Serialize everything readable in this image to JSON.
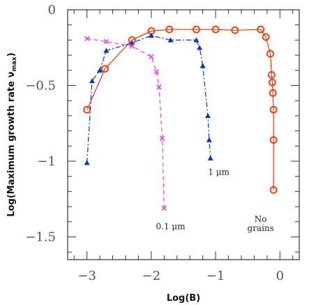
{
  "chart_data": {
    "type": "line",
    "xlabel": "Log(B)",
    "ylabel": "Log(Maximum growth rate ν",
    "ylabel_sub": "max",
    "ylabel_close": ")",
    "xlim": [
      -3.3,
      0.3
    ],
    "ylim": [
      -1.65,
      0
    ],
    "x_ticks": [
      -3,
      -2,
      -1,
      0
    ],
    "x_tick_labels": [
      "−3",
      "−2",
      "−1",
      "0"
    ],
    "y_ticks": [
      0,
      -0.5,
      -1,
      -1.5
    ],
    "y_tick_labels": [
      "0",
      "−0.5",
      "−1",
      "−1.5"
    ],
    "grid": false,
    "annotations": [
      {
        "text": "1 μm",
        "x": -0.95,
        "y": -1.09
      },
      {
        "text": "0.1 μm",
        "x": -1.7,
        "y": -1.45
      },
      {
        "text": "No",
        "x": -0.3,
        "y": -1.4
      },
      {
        "text": "grains",
        "x": -0.3,
        "y": -1.46
      }
    ],
    "series": [
      {
        "label": "No grains",
        "color": "#ff3300",
        "marker": "circle",
        "line": "solid",
        "x": [
          -3.0,
          -2.72,
          -2.3,
          -2.0,
          -1.72,
          -1.3,
          -1.0,
          -0.7,
          -0.3,
          -0.22,
          -0.15,
          -0.13,
          -0.12,
          -0.11,
          -0.1,
          -0.1,
          -0.1
        ],
        "y": [
          -0.66,
          -0.39,
          -0.2,
          -0.14,
          -0.13,
          -0.13,
          -0.13,
          -0.135,
          -0.13,
          -0.18,
          -0.29,
          -0.43,
          -0.48,
          -0.55,
          -0.66,
          -0.86,
          -1.19
        ]
      },
      {
        "label": "1 μm",
        "color": "#0033cc",
        "marker": "triangle",
        "line": "dashdot",
        "x": [
          -3.0,
          -2.92,
          -2.8,
          -2.7,
          -2.3,
          -2.0,
          -1.7,
          -1.3,
          -1.25,
          -1.2,
          -1.12,
          -1.1,
          -1.08
        ],
        "y": [
          -1.01,
          -0.47,
          -0.4,
          -0.27,
          -0.22,
          -0.17,
          -0.2,
          -0.2,
          -0.25,
          -0.37,
          -0.7,
          -0.86,
          -0.98
        ]
      },
      {
        "label": "0.1 μm",
        "color": "#ee44ee",
        "marker": "x",
        "line": "dashed",
        "x": [
          -3.0,
          -2.7,
          -2.3,
          -2.0,
          -1.92,
          -1.88,
          -1.83,
          -1.8
        ],
        "y": [
          -0.19,
          -0.21,
          -0.24,
          -0.31,
          -0.41,
          -0.51,
          -0.85,
          -1.31
        ]
      }
    ]
  }
}
